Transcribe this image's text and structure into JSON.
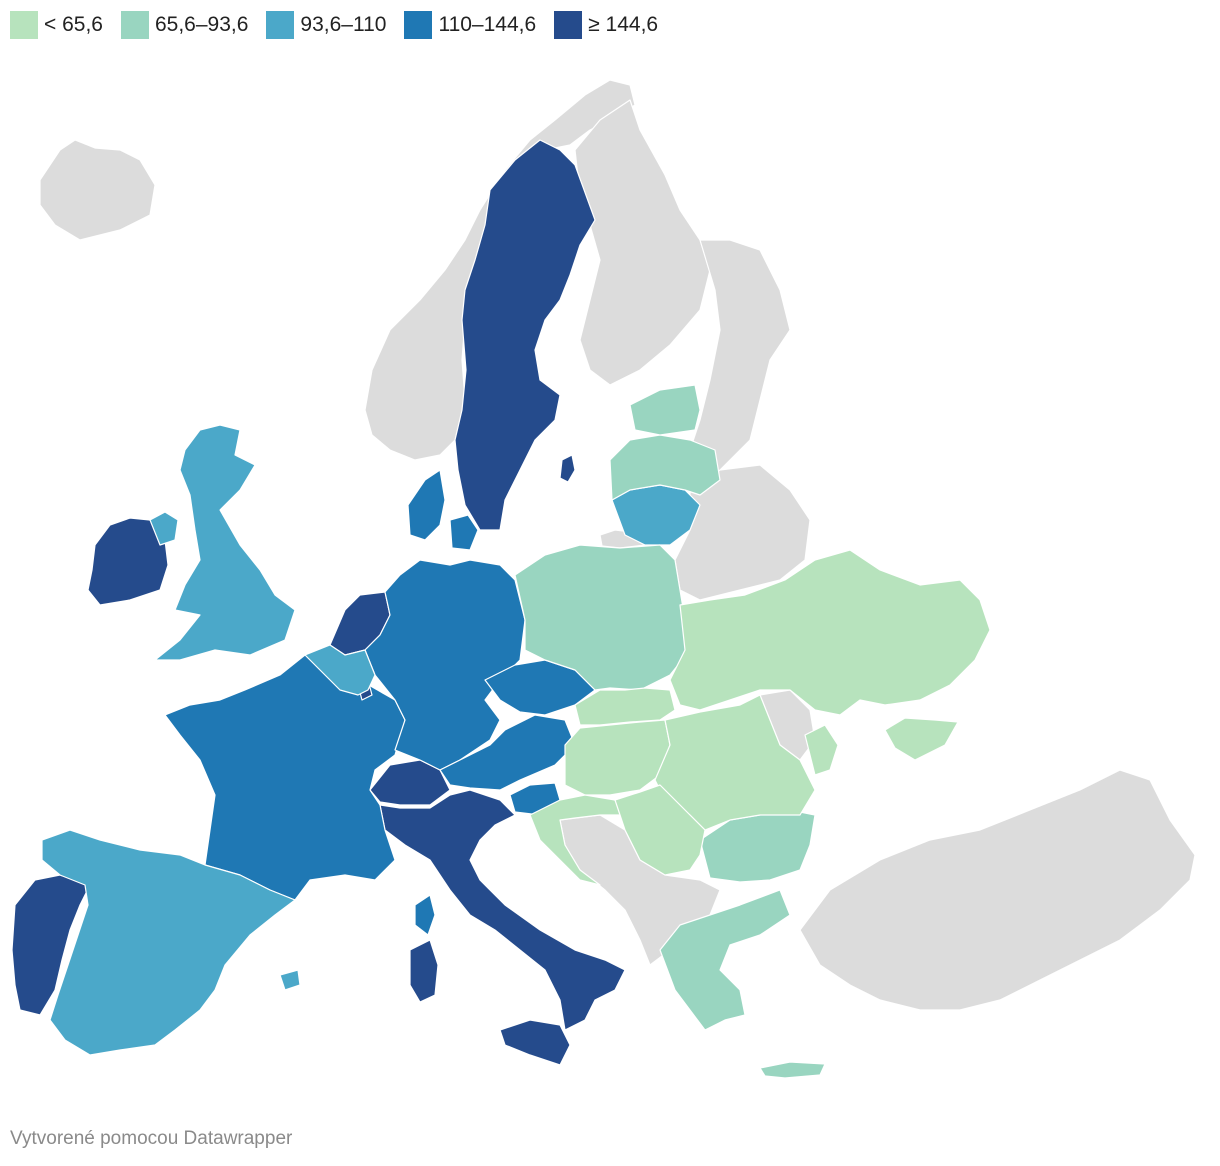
{
  "legend": {
    "bins": [
      {
        "label": "< 65,6",
        "color": "#b7e3bd"
      },
      {
        "label": "65,6–93,6",
        "color": "#99d5c0"
      },
      {
        "label": "93,6–110",
        "color": "#4ba8c9"
      },
      {
        "label": "110–144,6",
        "color": "#1f78b4"
      },
      {
        "label": "≥ 144,6",
        "color": "#254b8c"
      }
    ]
  },
  "colors": {
    "no_data": "#dcdcdc",
    "border": "#ffffff"
  },
  "countries": {
    "sweden": 4,
    "ireland": 4,
    "netherlands": 4,
    "switzerland": 4,
    "italy": 4,
    "portugal": 4,
    "luxembourg": 4,
    "france": 3,
    "germany": 3,
    "denmark": 3,
    "austria": 3,
    "czechia": 3,
    "slovenia": 3,
    "united_kingdom": 2,
    "spain": 2,
    "belgium": 2,
    "lithuania": 2,
    "poland": 1,
    "latvia": 1,
    "estonia": 1,
    "bulgaria": 1,
    "greece": 1,
    "cyprus": 1,
    "slovakia": 0,
    "hungary": 0,
    "romania": 0,
    "croatia": 0,
    "serbia": 0,
    "ukraine": 0,
    "moldova": 0,
    "iceland": null,
    "norway": null,
    "finland": null,
    "belarus": null,
    "russia": null,
    "turkey": null,
    "balkans": null
  },
  "credit": "Vytvorené pomocou Datawrapper"
}
